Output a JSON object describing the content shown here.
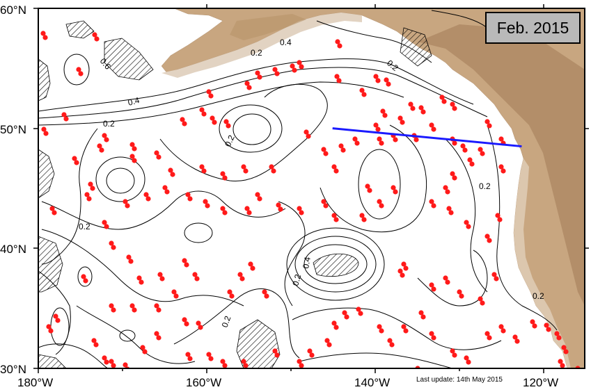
{
  "map": {
    "date_label": "Feb. 2015",
    "update_text": "Last update: 14th May 2015",
    "lat_labels": [
      "60°N",
      "50°N",
      "40°N",
      "30°N"
    ],
    "lon_labels": [
      "180°W",
      "160°W",
      "140°W",
      "120°W"
    ],
    "contour_labels": [
      "0.6",
      "0.4",
      "0.2",
      "0.2",
      "0.2",
      "0.2",
      "0.2",
      "0.4",
      "0.2",
      "0.2",
      "0.4",
      "0.2",
      "0.2"
    ],
    "colors": {
      "land": "#c4a27f",
      "float": "#ff1a1a",
      "section_line": "#1a1aff",
      "contour": "#000000"
    },
    "extent": {
      "lon_min": -180,
      "lon_max": -115,
      "lat_min": 30,
      "lat_max": 60
    },
    "section_line": {
      "from": {
        "lon": -145,
        "lat": 50
      },
      "to": {
        "lon": -122.5,
        "lat": 48.5
      }
    }
  }
}
